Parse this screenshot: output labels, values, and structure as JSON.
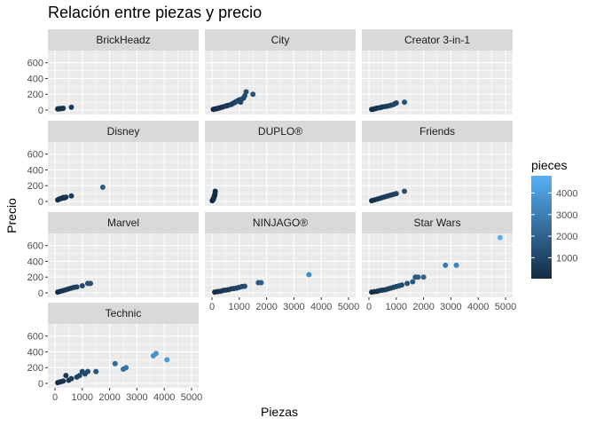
{
  "chart_data": {
    "type": "scatter",
    "title": "Relación entre piezas y precio",
    "xlabel": "Piezas",
    "ylabel": "Precio",
    "xlim": [
      0,
      5000
    ],
    "ylim": [
      0,
      720
    ],
    "x_ticks": [
      0,
      1000,
      2000,
      3000,
      4000,
      5000
    ],
    "y_ticks": [
      0,
      200,
      400,
      600
    ],
    "grid": true,
    "legend_position": "right",
    "color_scale": {
      "title": "pieces",
      "min": 30,
      "max": 4800,
      "ticks": [
        1000,
        2000,
        3000,
        4000
      ],
      "low_color": "#132B43",
      "high_color": "#56B1F7"
    },
    "facets": [
      {
        "name": "BrickHeadz",
        "points": [
          [
            100,
            14
          ],
          [
            130,
            15
          ],
          [
            150,
            16
          ],
          [
            200,
            18
          ],
          [
            250,
            20
          ],
          [
            300,
            22
          ],
          [
            600,
            35
          ]
        ]
      },
      {
        "name": "City",
        "points": [
          [
            50,
            8
          ],
          [
            100,
            12
          ],
          [
            150,
            15
          ],
          [
            200,
            20
          ],
          [
            250,
            25
          ],
          [
            300,
            30
          ],
          [
            350,
            35
          ],
          [
            400,
            40
          ],
          [
            500,
            50
          ],
          [
            550,
            55
          ],
          [
            600,
            60
          ],
          [
            700,
            70
          ],
          [
            750,
            80
          ],
          [
            800,
            90
          ],
          [
            850,
            100
          ],
          [
            900,
            110
          ],
          [
            950,
            120
          ],
          [
            1000,
            130
          ],
          [
            1050,
            100
          ],
          [
            1100,
            140
          ],
          [
            1150,
            150
          ],
          [
            1200,
            180
          ],
          [
            1250,
            230
          ],
          [
            1500,
            200
          ]
        ]
      },
      {
        "name": "Creator 3-in-1",
        "points": [
          [
            100,
            8
          ],
          [
            150,
            10
          ],
          [
            200,
            15
          ],
          [
            250,
            20
          ],
          [
            300,
            25
          ],
          [
            400,
            30
          ],
          [
            450,
            35
          ],
          [
            500,
            40
          ],
          [
            600,
            45
          ],
          [
            700,
            50
          ],
          [
            800,
            60
          ],
          [
            900,
            70
          ],
          [
            950,
            80
          ],
          [
            1000,
            90
          ],
          [
            1300,
            100
          ]
        ]
      },
      {
        "name": "Disney",
        "points": [
          [
            100,
            20
          ],
          [
            150,
            30
          ],
          [
            200,
            35
          ],
          [
            250,
            40
          ],
          [
            300,
            50
          ],
          [
            350,
            45
          ],
          [
            400,
            55
          ],
          [
            600,
            70
          ],
          [
            1750,
            180
          ]
        ]
      },
      {
        "name": "DUPLO®",
        "points": [
          [
            10,
            10
          ],
          [
            20,
            15
          ],
          [
            30,
            20
          ],
          [
            40,
            25
          ],
          [
            50,
            30
          ],
          [
            60,
            40
          ],
          [
            70,
            50
          ],
          [
            80,
            60
          ],
          [
            90,
            70
          ],
          [
            100,
            80
          ],
          [
            110,
            100
          ],
          [
            120,
            130
          ]
        ]
      },
      {
        "name": "Friends",
        "points": [
          [
            100,
            10
          ],
          [
            200,
            20
          ],
          [
            300,
            30
          ],
          [
            400,
            40
          ],
          [
            500,
            50
          ],
          [
            600,
            60
          ],
          [
            700,
            70
          ],
          [
            800,
            80
          ],
          [
            900,
            90
          ],
          [
            1000,
            100
          ],
          [
            1300,
            130
          ]
        ]
      },
      {
        "name": "Marvel",
        "points": [
          [
            100,
            10
          ],
          [
            200,
            20
          ],
          [
            300,
            30
          ],
          [
            400,
            40
          ],
          [
            500,
            50
          ],
          [
            600,
            60
          ],
          [
            700,
            70
          ],
          [
            800,
            75
          ],
          [
            1000,
            90
          ],
          [
            1200,
            120
          ],
          [
            1300,
            120
          ]
        ]
      },
      {
        "name": "NINJAGO®",
        "points": [
          [
            100,
            10
          ],
          [
            200,
            15
          ],
          [
            300,
            20
          ],
          [
            400,
            30
          ],
          [
            500,
            35
          ],
          [
            600,
            40
          ],
          [
            700,
            50
          ],
          [
            800,
            55
          ],
          [
            900,
            60
          ],
          [
            1000,
            70
          ],
          [
            1100,
            80
          ],
          [
            1200,
            85
          ],
          [
            1700,
            130
          ],
          [
            1800,
            130
          ],
          [
            3550,
            230
          ]
        ]
      },
      {
        "name": "Star Wars",
        "points": [
          [
            100,
            10
          ],
          [
            200,
            15
          ],
          [
            300,
            20
          ],
          [
            400,
            30
          ],
          [
            500,
            35
          ],
          [
            600,
            40
          ],
          [
            700,
            50
          ],
          [
            800,
            60
          ],
          [
            900,
            70
          ],
          [
            1000,
            80
          ],
          [
            1100,
            90
          ],
          [
            1200,
            100
          ],
          [
            1400,
            120
          ],
          [
            1600,
            140
          ],
          [
            1700,
            200
          ],
          [
            1800,
            200
          ],
          [
            2000,
            200
          ],
          [
            2800,
            350
          ],
          [
            3200,
            350
          ],
          [
            4800,
            700
          ]
        ]
      },
      {
        "name": "Technic",
        "points": [
          [
            100,
            10
          ],
          [
            200,
            20
          ],
          [
            300,
            30
          ],
          [
            400,
            100
          ],
          [
            500,
            40
          ],
          [
            600,
            60
          ],
          [
            800,
            80
          ],
          [
            900,
            100
          ],
          [
            1000,
            150
          ],
          [
            1100,
            120
          ],
          [
            1200,
            150
          ],
          [
            1500,
            150
          ],
          [
            2200,
            250
          ],
          [
            2500,
            180
          ],
          [
            2600,
            200
          ],
          [
            3600,
            350
          ],
          [
            3700,
            380
          ],
          [
            4100,
            300
          ]
        ]
      }
    ]
  }
}
